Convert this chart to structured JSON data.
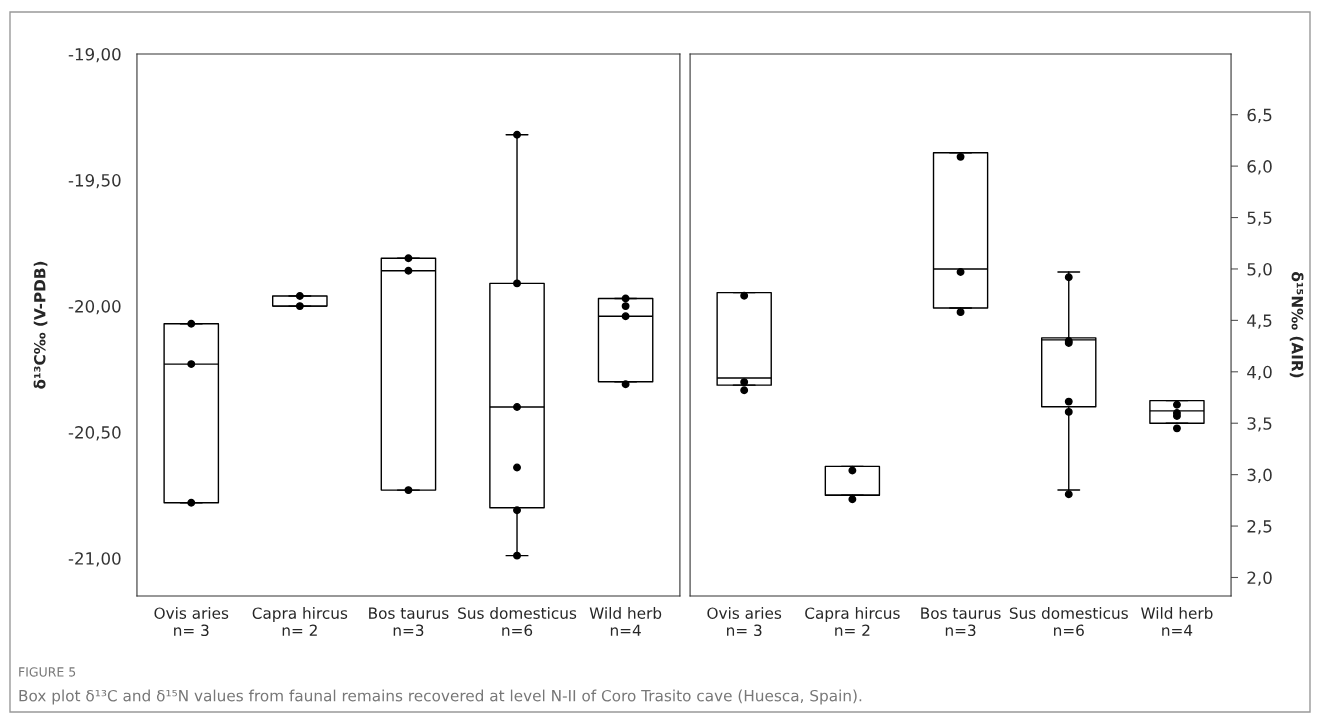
{
  "chart_data": [
    {
      "type": "box",
      "ylabel": "δ¹³C‰ (V-PDB)",
      "categories": [
        "Ovis aries\nn= 3",
        "Capra hircus\nn= 2",
        "Bos taurus\nn=3",
        "Sus domesticus\nn=6",
        "Wild herb\nn=4"
      ],
      "boxes": [
        {
          "low": -20.78,
          "q1": -20.78,
          "median": -20.23,
          "q3": -20.07,
          "high": -20.07
        },
        {
          "low": -20.0,
          "q1": -20.0,
          "median": -20.0,
          "q3": -19.96,
          "high": -19.96
        },
        {
          "low": -20.73,
          "q1": -20.73,
          "median": -19.86,
          "q3": -19.81,
          "high": -19.81
        },
        {
          "low": -20.99,
          "q1": -20.8,
          "median": -20.4,
          "q3": -19.91,
          "high": -19.32
        },
        {
          "low": -20.3,
          "q1": -20.3,
          "median": -20.04,
          "q3": -19.97,
          "high": -19.97
        }
      ],
      "series": [
        {
          "type": "scatter",
          "color": "#000000",
          "marker": "circle",
          "x": [
            "Ovis aries\nn= 3",
            "Ovis aries\nn= 3",
            "Ovis aries\nn= 3",
            "Capra hircus\nn= 2",
            "Capra hircus\nn= 2",
            "Bos taurus\nn=3",
            "Bos taurus\nn=3",
            "Bos taurus\nn=3",
            "Sus domesticus\nn=6",
            "Sus domesticus\nn=6",
            "Sus domesticus\nn=6",
            "Sus domesticus\nn=6",
            "Sus domesticus\nn=6",
            "Sus domesticus\nn=6",
            "Wild herb\nn=4",
            "Wild herb\nn=4",
            "Wild herb\nn=4",
            "Wild herb\nn=4"
          ],
          "values": [
            -20.07,
            -20.23,
            -20.78,
            -19.96,
            -20.0,
            -19.81,
            -19.86,
            -20.73,
            -19.32,
            -19.91,
            -20.4,
            -20.64,
            -20.81,
            -20.99,
            -19.97,
            -20.0,
            -20.04,
            -20.31
          ]
        }
      ],
      "ylim": [
        -21.15,
        -19.0
      ],
      "yticks": [
        {
          "value": -19.0,
          "label": "-19,00"
        },
        {
          "value": -19.5,
          "label": "-19,50"
        },
        {
          "value": -20.0,
          "label": "-20,00"
        },
        {
          "value": -20.5,
          "label": "-20,50"
        },
        {
          "value": -21.0,
          "label": "-21,00"
        }
      ],
      "grid": false,
      "legend": false
    },
    {
      "type": "box",
      "ylabel": "δ¹⁵N‰ (AIR)",
      "categories": [
        "Ovis aries\nn= 3",
        "Capra hircus\nn= 2",
        "Bos taurus\nn=3",
        "Sus domesticus\nn=6",
        "Wild herb\nn=4"
      ],
      "boxes": [
        {
          "low": 3.87,
          "q1": 3.87,
          "median": 3.94,
          "q3": 4.77,
          "high": 4.77
        },
        {
          "low": 2.8,
          "q1": 2.8,
          "median": 2.8,
          "q3": 3.08,
          "high": 3.08
        },
        {
          "low": 4.62,
          "q1": 4.62,
          "median": 5.0,
          "q3": 6.13,
          "high": 6.13
        },
        {
          "low": 2.85,
          "q1": 3.66,
          "median": 4.31,
          "q3": 4.33,
          "high": 4.97
        },
        {
          "low": 3.5,
          "q1": 3.5,
          "median": 3.62,
          "q3": 3.72,
          "high": 3.72
        }
      ],
      "series": [
        {
          "type": "scatter",
          "color": "#000000",
          "marker": "circle",
          "x": [
            "Ovis aries\nn= 3",
            "Ovis aries\nn= 3",
            "Ovis aries\nn= 3",
            "Capra hircus\nn= 2",
            "Capra hircus\nn= 2",
            "Bos taurus\nn=3",
            "Bos taurus\nn=3",
            "Bos taurus\nn=3",
            "Sus domesticus\nn=6",
            "Sus domesticus\nn=6",
            "Sus domesticus\nn=6",
            "Sus domesticus\nn=6",
            "Sus domesticus\nn=6",
            "Sus domesticus\nn=6",
            "Wild herb\nn=4",
            "Wild herb\nn=4",
            "Wild herb\nn=4",
            "Wild herb\nn=4"
          ],
          "values": [
            4.74,
            3.9,
            3.82,
            3.04,
            2.76,
            6.09,
            4.97,
            4.58,
            4.92,
            4.3,
            4.28,
            3.71,
            3.61,
            2.81,
            3.68,
            3.6,
            3.57,
            3.45
          ]
        }
      ],
      "ylim": [
        1.82,
        7.09
      ],
      "yticks": [
        {
          "value": 2.0,
          "label": "2,0"
        },
        {
          "value": 2.5,
          "label": "2,5"
        },
        {
          "value": 3.0,
          "label": "3,0"
        },
        {
          "value": 3.5,
          "label": "3,5"
        },
        {
          "value": 4.0,
          "label": "4,0"
        },
        {
          "value": 4.5,
          "label": "4,5"
        },
        {
          "value": 5.0,
          "label": "5,0"
        },
        {
          "value": 5.5,
          "label": "5,5"
        },
        {
          "value": 6.0,
          "label": "6,0"
        },
        {
          "value": 6.5,
          "label": "6,5"
        }
      ],
      "grid": false,
      "legend": false,
      "annotations": [
        "FIGURE 5",
        "Box plot δ¹³C and δ¹⁵N values from faunal remains recovered at level N-II of Coro Trasito cave (Huesca, Spain)."
      ]
    }
  ]
}
